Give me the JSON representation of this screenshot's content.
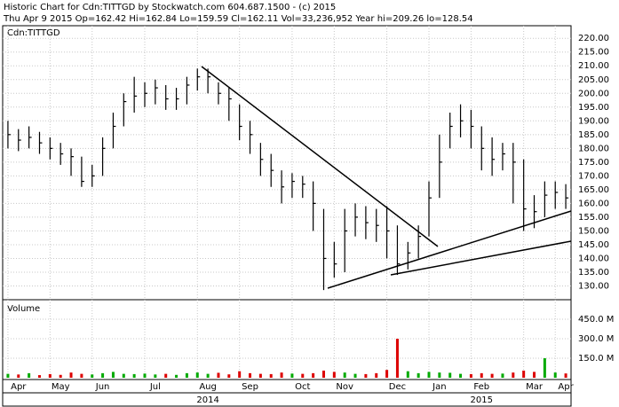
{
  "chart_data": {
    "type": "ohlc",
    "title": "Historic Chart for Cdn:TITTGD by Stockwatch.com 604.687.1500 - (c) 2015",
    "subtitle": "Thu Apr  9 2015  Op=162.42  Hi=162.84  Lo=159.59  Cl=162.11  Vol=33,236,952  Year hi=209.26  lo=128.54",
    "symbol": "Cdn:TITTGD",
    "volume_title": "Volume",
    "years": [
      "2014",
      "2015"
    ],
    "grid": true,
    "color": "#000000",
    "categories": [
      null,
      "Apr",
      null,
      null,
      null,
      "May",
      null,
      null,
      null,
      "Jun",
      null,
      null,
      null,
      null,
      "Jul",
      null,
      null,
      null,
      null,
      "Aug",
      null,
      null,
      null,
      "Sep",
      null,
      null,
      null,
      null,
      "Oct",
      null,
      null,
      null,
      "Nov",
      null,
      null,
      null,
      null,
      "Dec",
      null,
      null,
      null,
      "Jan",
      null,
      null,
      null,
      "Feb",
      null,
      null,
      null,
      null,
      "Mar",
      null,
      null,
      "Apr"
    ],
    "high": [
      190,
      187,
      188,
      186,
      184,
      182,
      180,
      177,
      174,
      184,
      193,
      200,
      206,
      204,
      205,
      203,
      202,
      206,
      209,
      209,
      204,
      202,
      196,
      190,
      182,
      178,
      172,
      171,
      170,
      168,
      158,
      146,
      158,
      160,
      159,
      158,
      159,
      152,
      146,
      152,
      168,
      185,
      193,
      196,
      194,
      188,
      184,
      182,
      182,
      176,
      163,
      168,
      168,
      167
    ],
    "low": [
      180,
      179,
      180,
      178,
      176,
      174,
      170,
      166,
      166,
      170,
      180,
      188,
      193,
      195,
      196,
      194,
      194,
      196,
      201,
      200,
      196,
      190,
      183,
      178,
      170,
      166,
      160,
      162,
      162,
      150,
      128.5,
      133,
      135,
      148,
      147,
      146,
      140,
      134,
      136,
      140,
      148,
      162,
      180,
      184,
      180,
      172,
      170,
      172,
      160,
      150,
      151,
      155,
      158,
      158
    ],
    "close": [
      185,
      183,
      184,
      182,
      180,
      178,
      177,
      168,
      170,
      180,
      188,
      197,
      199,
      200,
      202,
      198,
      198,
      203,
      206,
      206,
      200,
      198,
      188,
      185,
      176,
      172,
      166,
      168,
      167,
      160,
      140,
      138,
      150,
      155,
      153,
      152,
      150,
      138,
      142,
      148,
      162,
      175,
      188,
      190,
      188,
      180,
      176,
      178,
      175,
      158,
      157,
      163,
      164,
      162
    ],
    "ylim": [
      125,
      222
    ],
    "yticks": [
      {
        "value": 130,
        "label": "130.00"
      },
      {
        "value": 135,
        "label": "135.00"
      },
      {
        "value": 140,
        "label": "140.00"
      },
      {
        "value": 145,
        "label": "145.00"
      },
      {
        "value": 150,
        "label": "150.00"
      },
      {
        "value": 155,
        "label": "155.00"
      },
      {
        "value": 160,
        "label": "160.00"
      },
      {
        "value": 165,
        "label": "165.00"
      },
      {
        "value": 170,
        "label": "170.00"
      },
      {
        "value": 175,
        "label": "175.00"
      },
      {
        "value": 180,
        "label": "180.00"
      },
      {
        "value": 185,
        "label": "185.00"
      },
      {
        "value": 190,
        "label": "190.00"
      },
      {
        "value": 195,
        "label": "195.00"
      },
      {
        "value": 200,
        "label": "200.00"
      },
      {
        "value": 205,
        "label": "205.00"
      },
      {
        "value": 210,
        "label": "210.00"
      },
      {
        "value": 215,
        "label": "215.00"
      },
      {
        "value": 220,
        "label": "220.00"
      }
    ],
    "volume": [
      30,
      25,
      35,
      20,
      28,
      22,
      40,
      30,
      25,
      35,
      45,
      30,
      28,
      32,
      25,
      30,
      22,
      35,
      40,
      30,
      38,
      26,
      50,
      35,
      30,
      28,
      40,
      32,
      30,
      35,
      55,
      45,
      40,
      30,
      28,
      35,
      60,
      300,
      50,
      35,
      45,
      40,
      38,
      30,
      28,
      35,
      30,
      32,
      40,
      55,
      45,
      150,
      40,
      33
    ],
    "up_color": "#00aa00",
    "down_color": "#dd0000",
    "y2lim": [
      0,
      580
    ],
    "y2ticks": [
      {
        "value": 150,
        "label": "150.0 M"
      },
      {
        "value": 300,
        "label": "300.0 M"
      },
      {
        "value": 450,
        "label": "450.0 M"
      }
    ]
  }
}
